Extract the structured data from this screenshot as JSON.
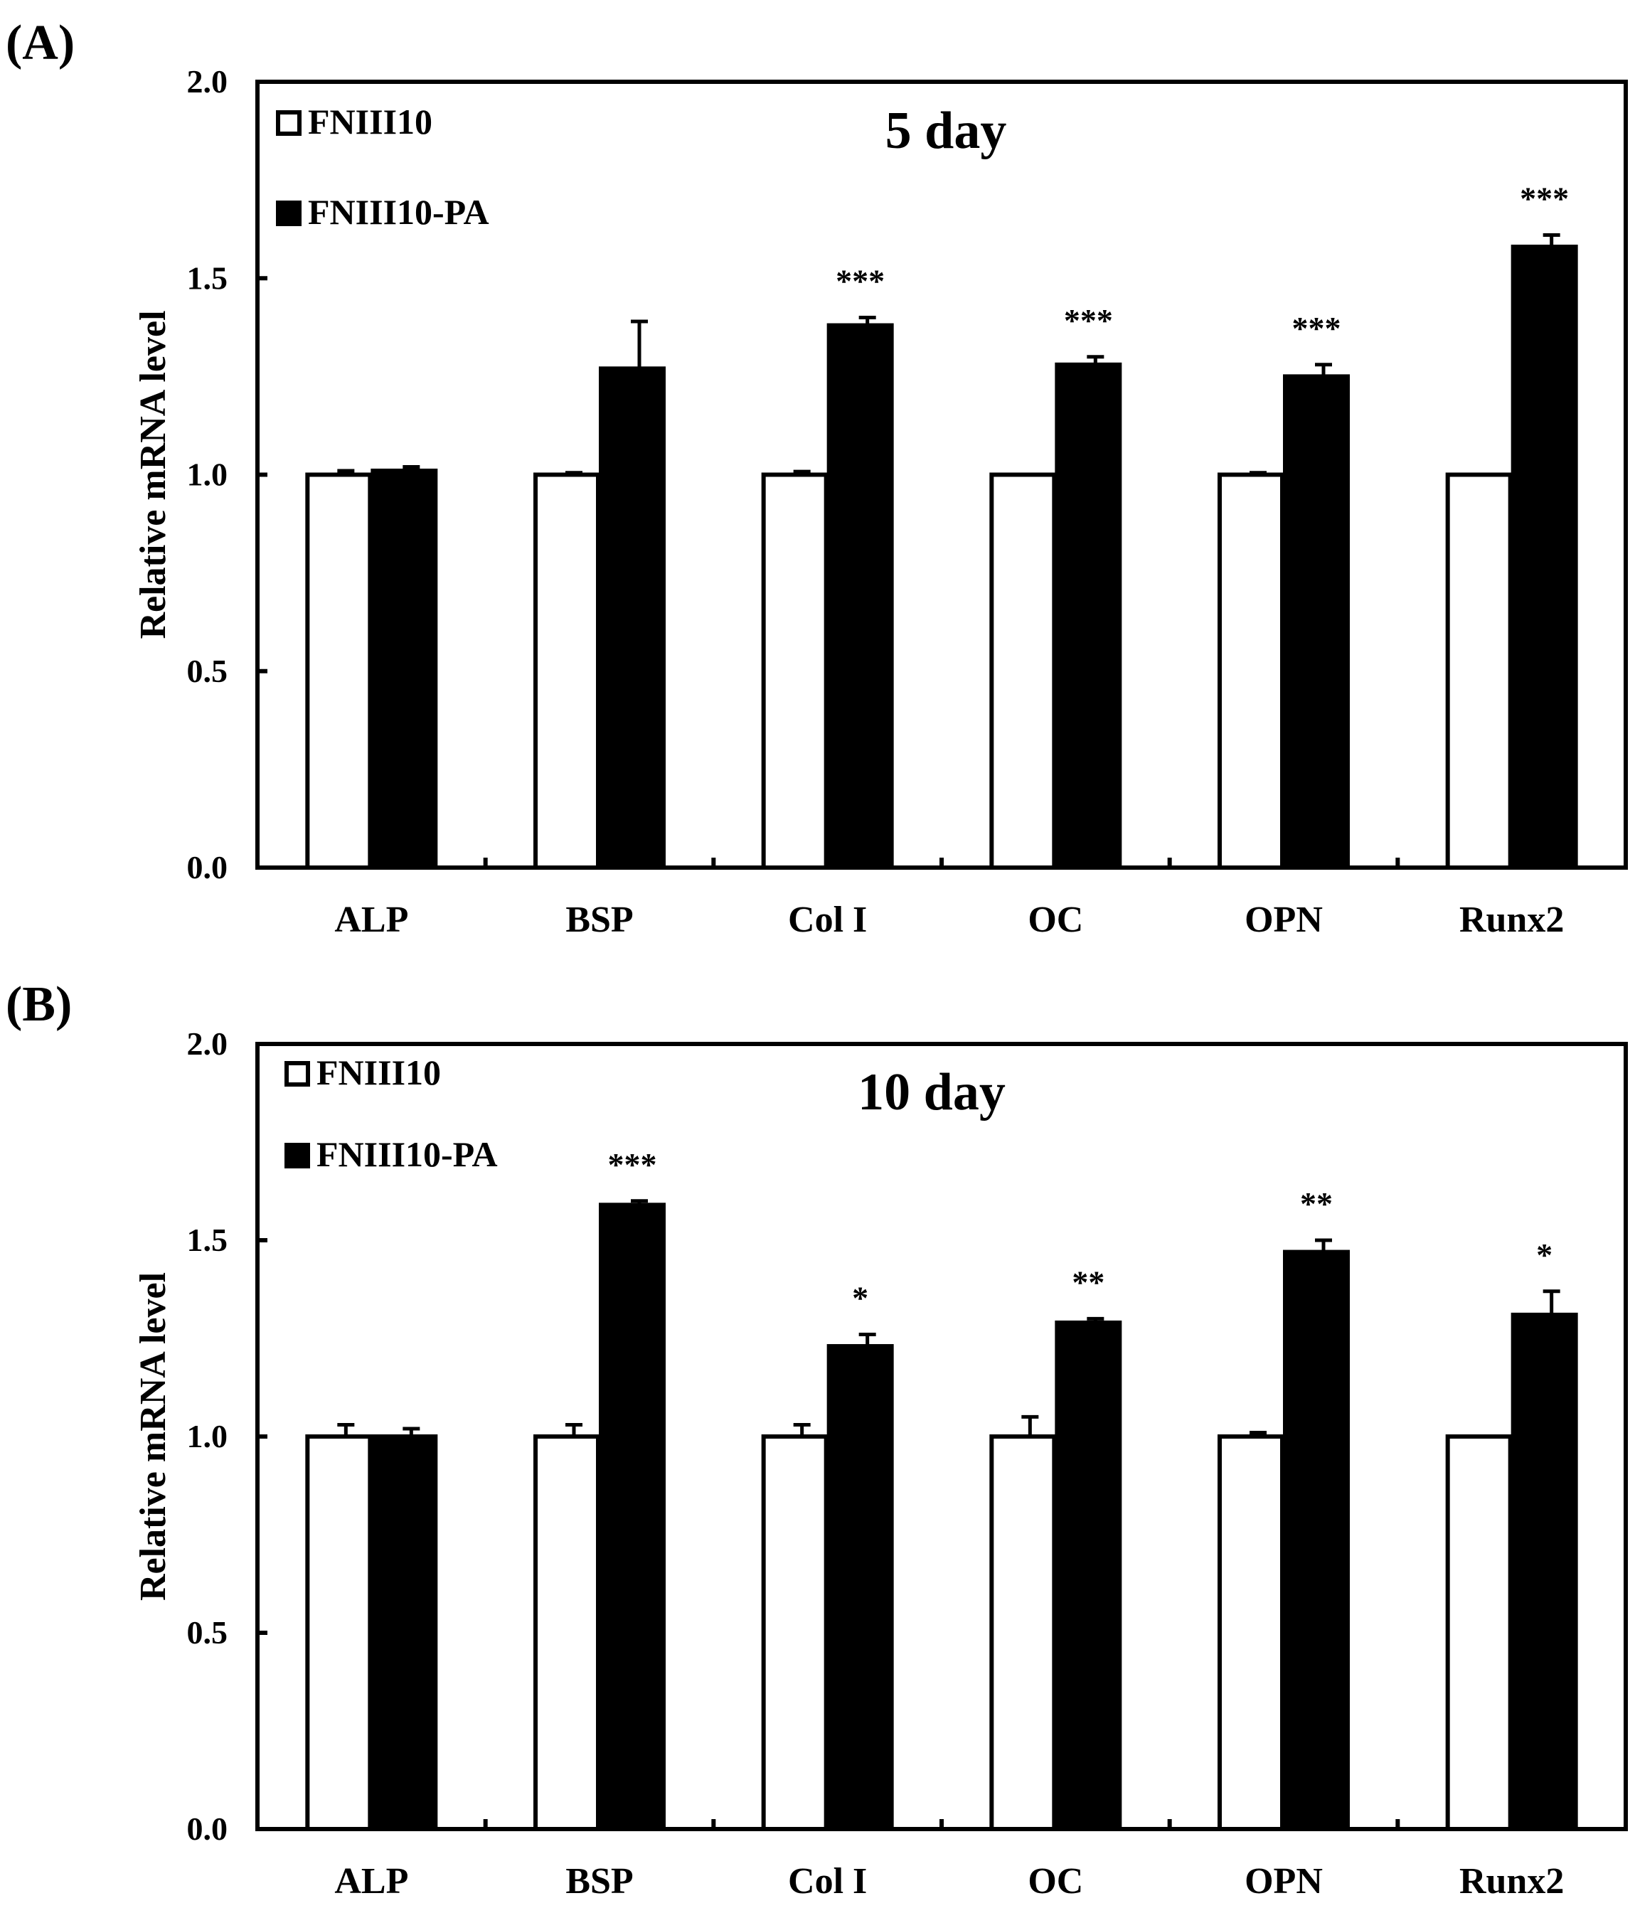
{
  "figure": {
    "background": "#ffffff",
    "ink": "#000000"
  },
  "chart_data": [
    {
      "type": "bar",
      "panel_label": "(A)",
      "title": "5 day",
      "xlabel": "",
      "ylabel": "Relative mRNA level",
      "ylim": [
        0,
        2.0
      ],
      "yticks": [
        "0.0",
        "0.5",
        "1.0",
        "1.5",
        "2.0"
      ],
      "categories": [
        "ALP",
        "BSP",
        "Col I",
        "OC",
        "OPN",
        "Runx2"
      ],
      "legend_position": "top-left",
      "series": [
        {
          "name": "FNIII10",
          "fill": "#ffffff",
          "values": [
            1.0,
            1.0,
            1.0,
            1.0,
            1.0,
            1.0
          ],
          "errors": [
            0.01,
            0.005,
            0.008,
            0.0,
            0.005,
            0.0
          ]
        },
        {
          "name": "FNIII10-PA",
          "fill": "#000000",
          "values": [
            1.01,
            1.27,
            1.38,
            1.28,
            1.25,
            1.58
          ],
          "errors": [
            0.01,
            0.12,
            0.02,
            0.02,
            0.03,
            0.03
          ]
        }
      ],
      "significance": [
        "",
        "",
        "***",
        "***",
        "***",
        "***"
      ]
    },
    {
      "type": "bar",
      "panel_label": "(B)",
      "title": "10 day",
      "xlabel": "",
      "ylabel": "Relative mRNA level",
      "ylim": [
        0,
        2.0
      ],
      "yticks": [
        "0.0",
        "0.5",
        "1.0",
        "1.5",
        "2.0"
      ],
      "categories": [
        "ALP",
        "BSP",
        "Col I",
        "OC",
        "OPN",
        "Runx2"
      ],
      "legend_position": "top-left",
      "series": [
        {
          "name": "FNIII10",
          "fill": "#ffffff",
          "values": [
            1.0,
            1.0,
            1.0,
            1.0,
            1.0,
            1.0
          ],
          "errors": [
            0.03,
            0.03,
            0.03,
            0.05,
            0.01,
            0.0
          ]
        },
        {
          "name": "FNIII10-PA",
          "fill": "#000000",
          "values": [
            1.0,
            1.59,
            1.23,
            1.29,
            1.47,
            1.31
          ],
          "errors": [
            0.02,
            0.01,
            0.03,
            0.01,
            0.03,
            0.06
          ]
        }
      ],
      "significance": [
        "",
        "***",
        "*",
        "**",
        "**",
        "*"
      ]
    }
  ]
}
